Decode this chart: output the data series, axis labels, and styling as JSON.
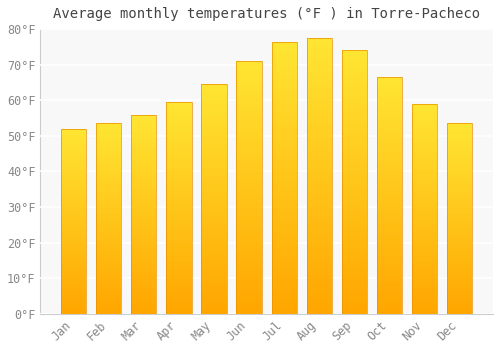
{
  "title": "Average monthly temperatures (°F ) in Torre-Pacheco",
  "months": [
    "Jan",
    "Feb",
    "Mar",
    "Apr",
    "May",
    "Jun",
    "Jul",
    "Aug",
    "Sep",
    "Oct",
    "Nov",
    "Dec"
  ],
  "values": [
    52,
    53.5,
    56,
    59.5,
    64.5,
    71,
    76.5,
    77.5,
    74,
    66.5,
    59,
    53.5
  ],
  "bar_color_top": "#FFCC44",
  "bar_color_bottom": "#FFA500",
  "bar_edge_color": "#E89000",
  "ylim": [
    0,
    80
  ],
  "yticks": [
    0,
    10,
    20,
    30,
    40,
    50,
    60,
    70,
    80
  ],
  "ytick_labels": [
    "0°F",
    "10°F",
    "20°F",
    "30°F",
    "40°F",
    "50°F",
    "60°F",
    "70°F",
    "80°F"
  ],
  "background_color": "#ffffff",
  "plot_bg_color": "#f8f8f8",
  "grid_color": "#e0e0e0",
  "title_fontsize": 10,
  "tick_fontsize": 8.5,
  "tick_color": "#888888",
  "font_family": "monospace"
}
